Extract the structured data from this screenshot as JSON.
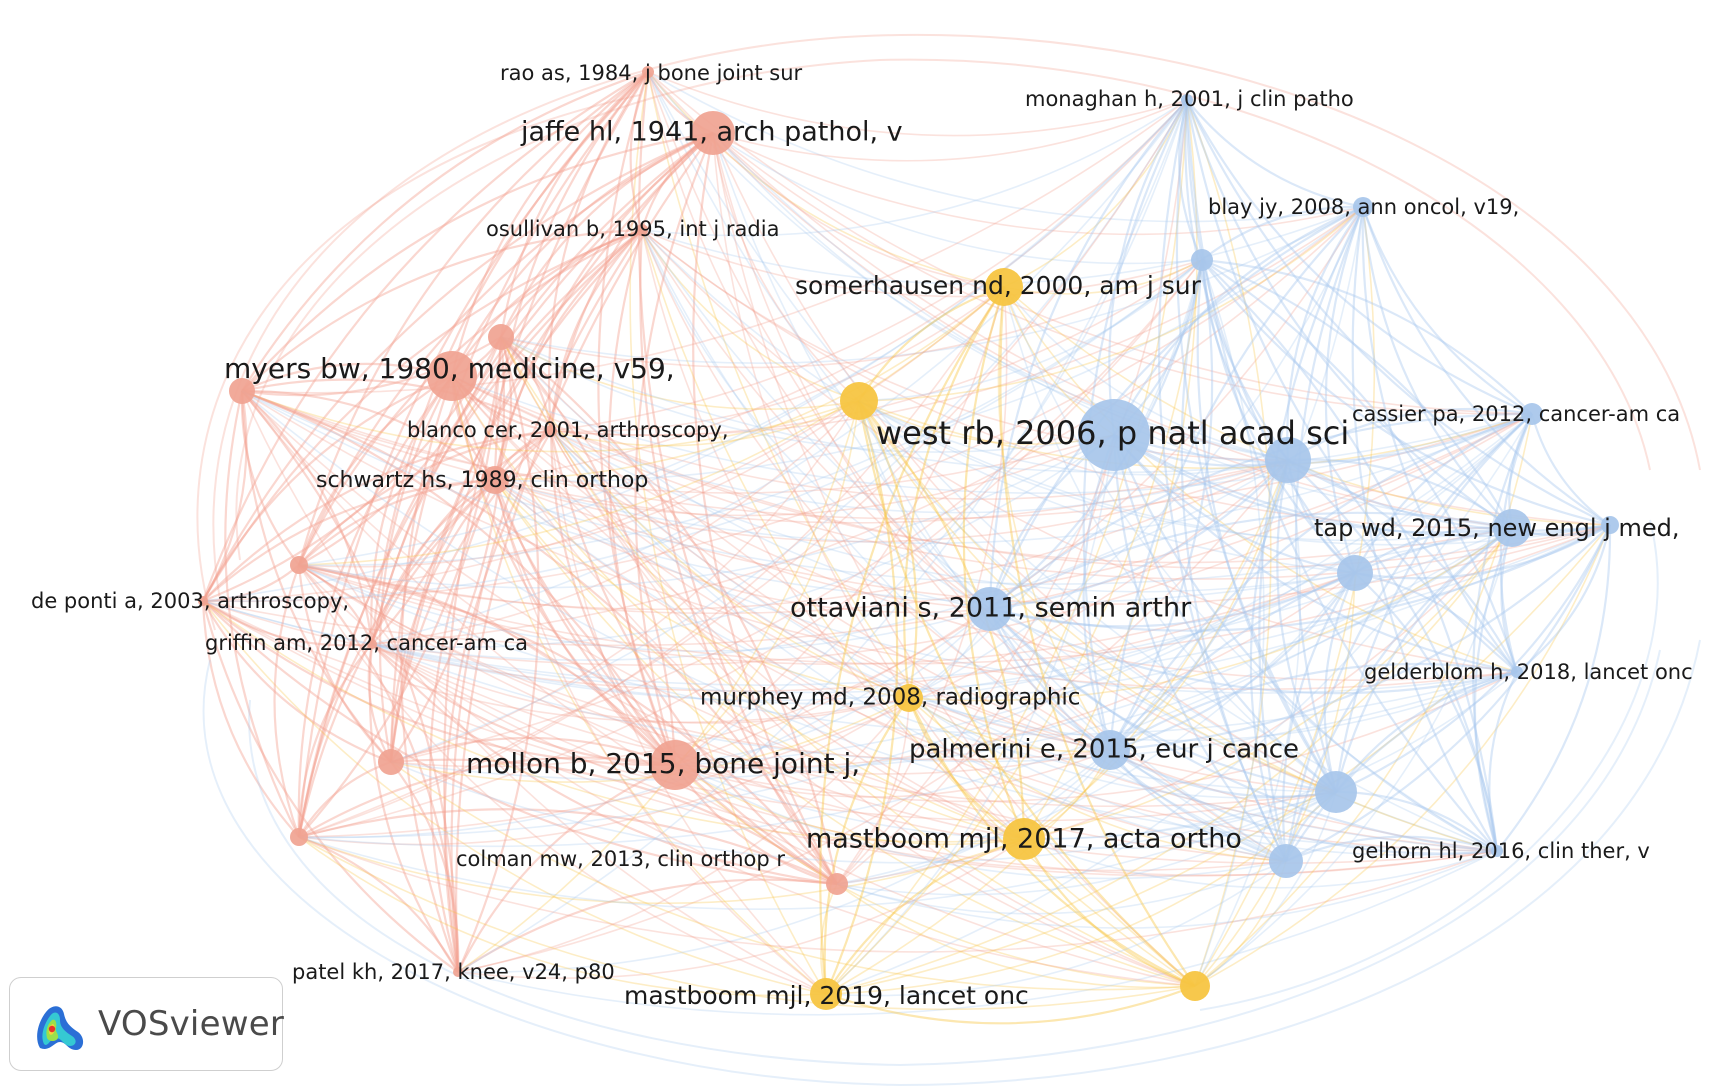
{
  "colors": {
    "red": "#f2a08e",
    "red_node": "#f0a391",
    "yellow": "#f7c542",
    "blue": "#a9c9ee",
    "blue_node": "#a7c6ea"
  },
  "nodes": [
    {
      "id": "rao",
      "label": "rao as, 1984, j bone joint sur",
      "cluster": "red"
    },
    {
      "id": "jaffe",
      "label": "jaffe hl, 1941, arch pathol, v",
      "cluster": "red"
    },
    {
      "id": "osullivan",
      "label": "osullivan b, 1995, int j radia",
      "cluster": "red"
    },
    {
      "id": "myers",
      "label": "myers bw, 1980, medicine, v59,",
      "cluster": "red"
    },
    {
      "id": "blanco",
      "label": "blanco cer, 2001, arthroscopy,",
      "cluster": "red"
    },
    {
      "id": "schwartz",
      "label": "schwartz hs, 1989, clin orthop",
      "cluster": "red"
    },
    {
      "id": "deponti",
      "label": "de ponti a, 2003, arthroscopy,",
      "cluster": "red"
    },
    {
      "id": "griffin",
      "label": "griffin am, 2012, cancer-am ca",
      "cluster": "red"
    },
    {
      "id": "mollon",
      "label": "mollon b, 2015, bone joint j,",
      "cluster": "red"
    },
    {
      "id": "colman",
      "label": "colman mw, 2013, clin orthop r",
      "cluster": "red"
    },
    {
      "id": "patel",
      "label": "patel kh, 2017, knee, v24, p80",
      "cluster": "red"
    },
    {
      "id": "r_left1",
      "label": "",
      "cluster": "red"
    },
    {
      "id": "r_left2",
      "label": "",
      "cluster": "red"
    },
    {
      "id": "r_left3",
      "label": "",
      "cluster": "red"
    },
    {
      "id": "r_left4",
      "label": "",
      "cluster": "red"
    },
    {
      "id": "r_osul2",
      "label": "",
      "cluster": "red"
    },
    {
      "id": "somerhausen",
      "label": "somerhausen nd, 2000, am j sur",
      "cluster": "yellow"
    },
    {
      "id": "murphey",
      "label": "murphey md, 2008, radiographic",
      "cluster": "yellow"
    },
    {
      "id": "mastboom2017",
      "label": "mastboom mjl, 2017, acta ortho",
      "cluster": "yellow"
    },
    {
      "id": "mastboom2019",
      "label": "mastboom mjl, 2019, lancet onc",
      "cluster": "yellow"
    },
    {
      "id": "y_center",
      "label": "",
      "cluster": "yellow"
    },
    {
      "id": "y_bottomright",
      "label": "",
      "cluster": "yellow"
    },
    {
      "id": "monaghan",
      "label": "monaghan h, 2001, j clin patho",
      "cluster": "blue"
    },
    {
      "id": "blay",
      "label": "blay jy, 2008, ann oncol, v19,",
      "cluster": "blue"
    },
    {
      "id": "west",
      "label": "west rb, 2006, p natl acad sci",
      "cluster": "blue"
    },
    {
      "id": "cassier",
      "label": "cassier pa, 2012, cancer-am ca",
      "cluster": "blue"
    },
    {
      "id": "tap",
      "label": "tap wd, 2015, new engl j med,",
      "cluster": "blue"
    },
    {
      "id": "ottaviani",
      "label": "ottaviani s, 2011, semin arthr",
      "cluster": "blue"
    },
    {
      "id": "gelderblom",
      "label": "gelderblom h, 2018, lancet onc",
      "cluster": "blue"
    },
    {
      "id": "palmerini",
      "label": "palmerini e, 2015, eur j cance",
      "cluster": "blue"
    },
    {
      "id": "gelhorn",
      "label": "gelhorn hl, 2016, clin ther, v",
      "cluster": "blue"
    },
    {
      "id": "b_small1",
      "label": "",
      "cluster": "blue"
    },
    {
      "id": "b_big2",
      "label": "",
      "cluster": "blue"
    },
    {
      "id": "b_mid",
      "label": "",
      "cluster": "blue"
    },
    {
      "id": "b_lowmid",
      "label": "",
      "cluster": "blue"
    },
    {
      "id": "b_low",
      "label": "",
      "cluster": "blue"
    },
    {
      "id": "b_right",
      "label": "",
      "cluster": "blue"
    }
  ],
  "logo": {
    "text": "VOSviewer",
    "icon": "vosviewer-heatmap-icon"
  }
}
